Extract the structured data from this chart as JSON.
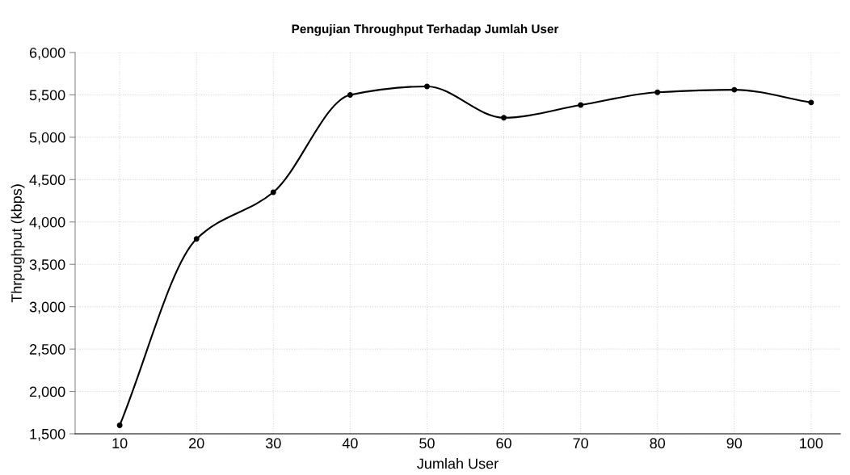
{
  "chart_data": {
    "type": "line",
    "title": "Pengujian Throughput Terhadap Jumlah User",
    "xlabel": "Jumlah User",
    "ylabel": "Thrpughput (kbps)",
    "x": [
      10,
      20,
      30,
      40,
      50,
      60,
      70,
      80,
      90,
      100
    ],
    "series": [
      {
        "color": "#000000",
        "values": [
          1600,
          3800,
          4350,
          5500,
          5600,
          5230,
          5380,
          5530,
          5560,
          5410
        ]
      }
    ],
    "xlim": [
      4.2,
      103.8
    ],
    "xticks": [
      10,
      20,
      30,
      40,
      50,
      60,
      70,
      80,
      90,
      100
    ],
    "ylim": [
      1500,
      6000
    ],
    "yticks": [
      {
        "value": 1500,
        "label": "1,500"
      },
      {
        "value": 2000,
        "label": "2,000"
      },
      {
        "value": 2500,
        "label": "2,500"
      },
      {
        "value": 3000,
        "label": "3,000"
      },
      {
        "value": 3500,
        "label": "3,500"
      },
      {
        "value": 4000,
        "label": "4,000"
      },
      {
        "value": 4500,
        "label": "4,500"
      },
      {
        "value": 5000,
        "label": "5,000"
      },
      {
        "value": 5500,
        "label": "5,500"
      },
      {
        "value": 6000,
        "label": "6,000"
      }
    ],
    "grid": true,
    "marker": "circle",
    "line_style": "solid"
  }
}
